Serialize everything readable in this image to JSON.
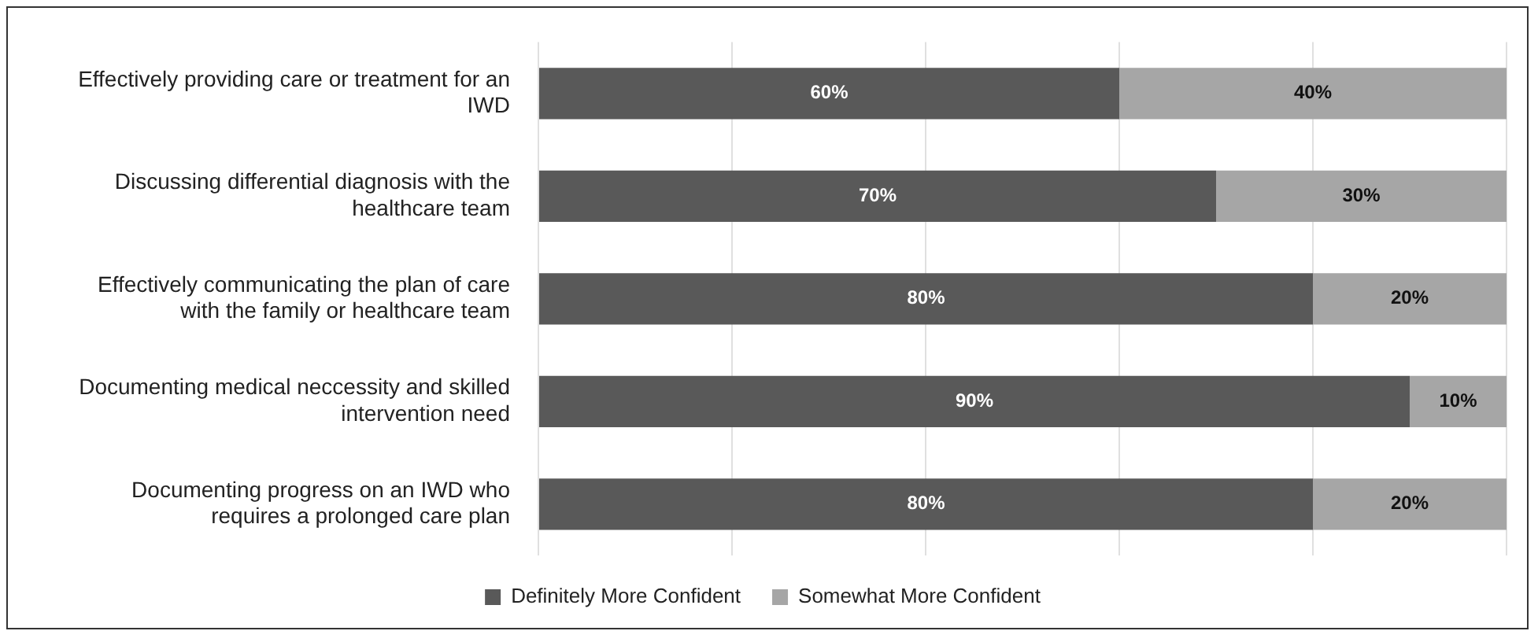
{
  "chart_data": {
    "type": "bar",
    "orientation": "horizontal",
    "stacked": true,
    "categories": [
      "Effectively providing care or treatment for an IWD",
      "Discussing differential diagnosis with the healthcare team",
      "Effectively communicating the plan of care with the family or healthcare team",
      "Documenting medical neccessity and skilled intervention need",
      "Documenting progress on an IWD who requires a prolonged care plan"
    ],
    "series": [
      {
        "name": "Definitely More Confident",
        "color": "#595959",
        "values": [
          60,
          70,
          80,
          90,
          80
        ],
        "value_labels": [
          "60%",
          "70%",
          "80%",
          "90%",
          "80%"
        ]
      },
      {
        "name": "Somewhat More Confident",
        "color": "#a6a6a6",
        "values": [
          40,
          30,
          20,
          10,
          20
        ],
        "value_labels": [
          "40%",
          "30%",
          "20%",
          "10%",
          "20%"
        ]
      }
    ],
    "xlim": [
      0,
      100
    ],
    "xticks": [
      {
        "value": 0,
        "label": null
      },
      {
        "value": 20,
        "label": null
      },
      {
        "value": 40,
        "label": null
      },
      {
        "value": 60,
        "label": null
      },
      {
        "value": 80,
        "label": null
      },
      {
        "value": 100,
        "label": null
      }
    ],
    "grid": "x",
    "legend": "bottom",
    "tick_labels": "y"
  }
}
